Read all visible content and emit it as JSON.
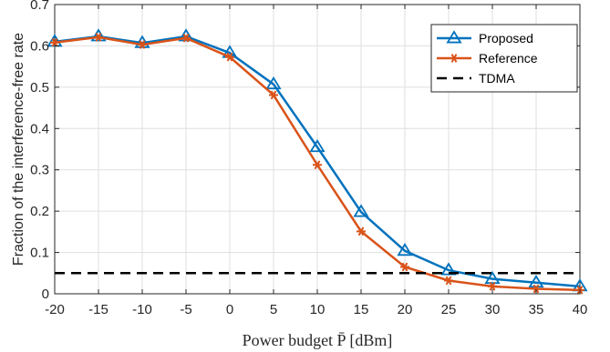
{
  "chart_data": {
    "type": "line",
    "x": [
      -20,
      -15,
      -10,
      -5,
      0,
      5,
      10,
      15,
      20,
      25,
      30,
      35,
      40
    ],
    "xlabel": "Power budget P̄ [dBm]",
    "ylabel": "Fraction of the interference-free rate",
    "xlim": [
      -20,
      40
    ],
    "ylim": [
      0,
      0.7
    ],
    "x_ticks": [
      "-20",
      "-15",
      "-10",
      "-5",
      "0",
      "5",
      "10",
      "15",
      "20",
      "25",
      "30",
      "35",
      "40"
    ],
    "y_ticks": [
      "0",
      "0.1",
      "0.2",
      "0.3",
      "0.4",
      "0.5",
      "0.6",
      "0.7"
    ],
    "grid": true,
    "legend_position": "top-right",
    "series": [
      {
        "name": "Proposed",
        "color": "#0072BD",
        "marker": "triangle",
        "values": [
          0.61,
          0.623,
          0.607,
          0.623,
          0.583,
          0.507,
          0.355,
          0.198,
          0.104,
          0.057,
          0.036,
          0.027,
          0.018
        ]
      },
      {
        "name": "Reference",
        "color": "#D95319",
        "marker": "asterisk",
        "values": [
          0.608,
          0.621,
          0.603,
          0.619,
          0.573,
          0.481,
          0.312,
          0.151,
          0.065,
          0.032,
          0.018,
          0.012,
          0.009
        ]
      },
      {
        "name": "TDMA",
        "color": "#000000",
        "line": "dashed",
        "values": [
          0.05,
          0.05,
          0.05,
          0.05,
          0.05,
          0.05,
          0.05,
          0.05,
          0.05,
          0.05,
          0.05,
          0.05,
          0.05
        ]
      }
    ]
  }
}
